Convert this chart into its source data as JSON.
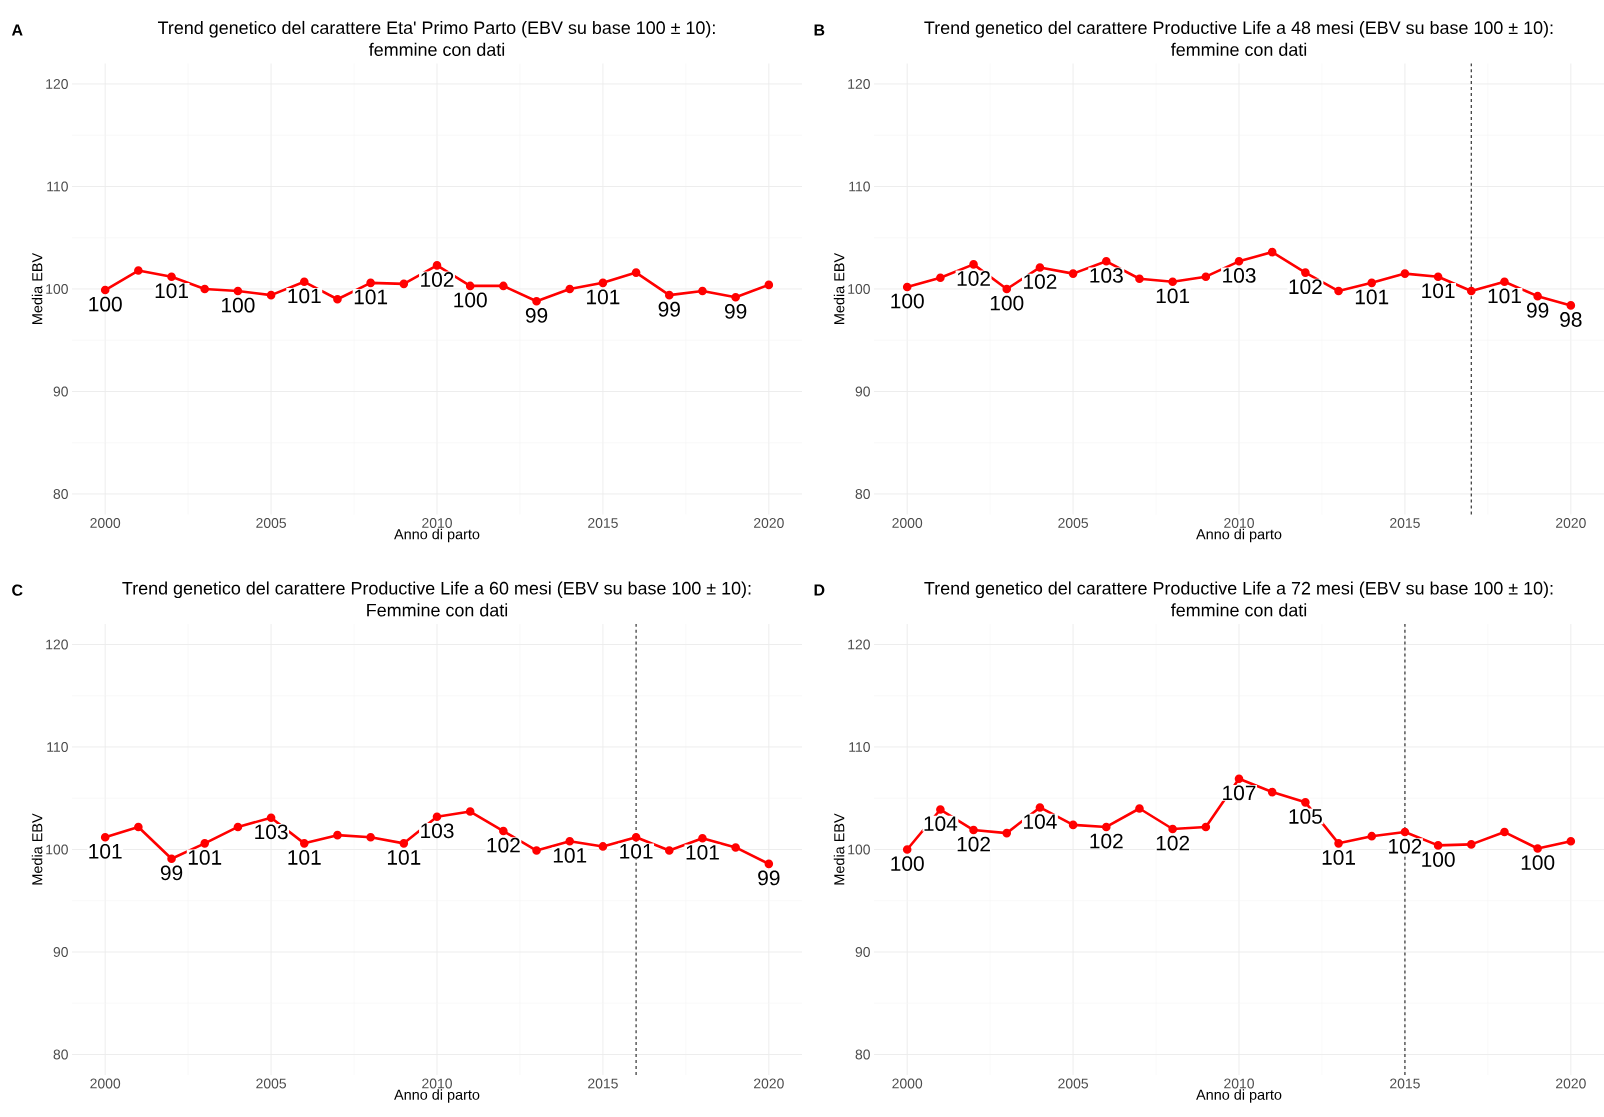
{
  "chart_data": [
    {
      "type": "line",
      "title": "Trend genetico del carattere Eta' Primo Parto (EBV su base 100 ± 10):",
      "subtitle": "femmine con dati",
      "xlabel": "Anno di parto",
      "ylabel": "Media EBV",
      "annotations": [
        "A"
      ],
      "x": [
        2000,
        2001,
        2002,
        2003,
        2004,
        2005,
        2006,
        2007,
        2008,
        2009,
        2010,
        2011,
        2012,
        2013,
        2014,
        2015,
        2016,
        2017,
        2018,
        2019,
        2020
      ],
      "values": [
        99.9,
        101.8,
        101.2,
        100.0,
        99.8,
        99.4,
        100.7,
        99.0,
        100.6,
        100.5,
        102.3,
        100.3,
        100.3,
        98.8,
        100.0,
        100.6,
        101.6,
        99.4,
        99.8,
        99.2,
        100.4
      ],
      "value_labels": [
        "100",
        null,
        "101",
        null,
        "100",
        null,
        "101",
        null,
        "101",
        null,
        "102",
        "100",
        null,
        "99",
        null,
        "101",
        null,
        "99",
        null,
        "99",
        null
      ],
      "color": "#ff0000",
      "marker": "circle",
      "line_style": "solid",
      "grid": true,
      "xlim": [
        1999,
        2021
      ],
      "ylim": [
        78,
        122
      ],
      "xticks": [
        2000,
        2005,
        2010,
        2015,
        2020
      ],
      "yticks": [
        80,
        90,
        100,
        110,
        120
      ]
    },
    {
      "type": "line",
      "title": "Trend genetico del carattere Productive Life a 48 mesi (EBV su base 100 ± 10):",
      "subtitle": "femmine con dati",
      "xlabel": "Anno di parto",
      "ylabel": "Media EBV",
      "annotations": [
        "B"
      ],
      "x": [
        2000,
        2001,
        2002,
        2003,
        2004,
        2005,
        2006,
        2007,
        2008,
        2009,
        2010,
        2011,
        2012,
        2013,
        2014,
        2015,
        2016,
        2017,
        2018,
        2019,
        2020
      ],
      "values": [
        100.2,
        101.1,
        102.4,
        100.0,
        102.1,
        101.5,
        102.7,
        101.0,
        100.7,
        101.2,
        102.7,
        103.6,
        101.6,
        99.8,
        100.6,
        101.5,
        101.2,
        99.8,
        100.7,
        99.3,
        98.4
      ],
      "value_labels": [
        "100",
        null,
        "102",
        "100",
        "102",
        null,
        "103",
        null,
        "101",
        null,
        "103",
        null,
        "102",
        null,
        "101",
        null,
        "101",
        null,
        "101",
        "99",
        "98"
      ],
      "color": "#ff0000",
      "marker": "circle",
      "line_style": "solid",
      "grid": true,
      "ref_lines": [
        {
          "axis": "x",
          "value": 2017,
          "line_style": "dashed",
          "color": "#333333"
        }
      ],
      "xlim": [
        1999,
        2021
      ],
      "ylim": [
        78,
        122
      ],
      "xticks": [
        2000,
        2005,
        2010,
        2015,
        2020
      ],
      "yticks": [
        80,
        90,
        100,
        110,
        120
      ]
    },
    {
      "type": "line",
      "title": "Trend genetico del carattere Productive Life a 60 mesi (EBV su base 100 ± 10):",
      "subtitle": "Femmine con dati",
      "xlabel": "Anno di parto",
      "ylabel": "Media EBV",
      "annotations": [
        "C"
      ],
      "x": [
        2000,
        2001,
        2002,
        2003,
        2004,
        2005,
        2006,
        2007,
        2008,
        2009,
        2010,
        2011,
        2012,
        2013,
        2014,
        2015,
        2016,
        2017,
        2018,
        2019,
        2020
      ],
      "values": [
        101.2,
        102.2,
        99.1,
        100.6,
        102.2,
        103.1,
        100.6,
        101.4,
        101.2,
        100.6,
        103.2,
        103.7,
        101.8,
        99.9,
        100.8,
        100.3,
        101.2,
        99.9,
        101.1,
        100.2,
        98.6
      ],
      "value_labels": [
        "101",
        null,
        "99",
        "101",
        null,
        "103",
        "101",
        null,
        null,
        "101",
        "103",
        null,
        "102",
        null,
        "101",
        null,
        "101",
        null,
        "101",
        null,
        "99"
      ],
      "color": "#ff0000",
      "marker": "circle",
      "line_style": "solid",
      "grid": true,
      "ref_lines": [
        {
          "axis": "x",
          "value": 2016,
          "line_style": "dashed",
          "color": "#333333"
        }
      ],
      "xlim": [
        1999,
        2021
      ],
      "ylim": [
        78,
        122
      ],
      "xticks": [
        2000,
        2005,
        2010,
        2015,
        2020
      ],
      "yticks": [
        80,
        90,
        100,
        110,
        120
      ]
    },
    {
      "type": "line",
      "title": "Trend genetico del carattere Productive Life a 72 mesi (EBV su base 100 ± 10):",
      "subtitle": "femmine con dati",
      "xlabel": "Anno di parto",
      "ylabel": "Media EBV",
      "annotations": [
        "D"
      ],
      "x": [
        2000,
        2001,
        2002,
        2003,
        2004,
        2005,
        2006,
        2007,
        2008,
        2009,
        2010,
        2011,
        2012,
        2013,
        2014,
        2015,
        2016,
        2017,
        2018,
        2019,
        2020
      ],
      "values": [
        100.0,
        103.9,
        101.9,
        101.6,
        104.1,
        102.4,
        102.2,
        104.0,
        102.0,
        102.2,
        106.9,
        105.6,
        104.6,
        100.6,
        101.3,
        101.7,
        100.4,
        100.5,
        101.7,
        100.1,
        100.8
      ],
      "value_labels": [
        "100",
        "104",
        "102",
        null,
        "104",
        null,
        "102",
        null,
        "102",
        null,
        "107",
        null,
        "105",
        "101",
        null,
        "102",
        "100",
        null,
        null,
        "100",
        null
      ],
      "color": "#ff0000",
      "marker": "circle",
      "line_style": "solid",
      "grid": true,
      "ref_lines": [
        {
          "axis": "x",
          "value": 2015,
          "line_style": "dashed",
          "color": "#333333"
        }
      ],
      "xlim": [
        1999,
        2021
      ],
      "ylim": [
        78,
        122
      ],
      "xticks": [
        2000,
        2005,
        2010,
        2015,
        2020
      ],
      "yticks": [
        80,
        90,
        100,
        110,
        120
      ]
    }
  ]
}
